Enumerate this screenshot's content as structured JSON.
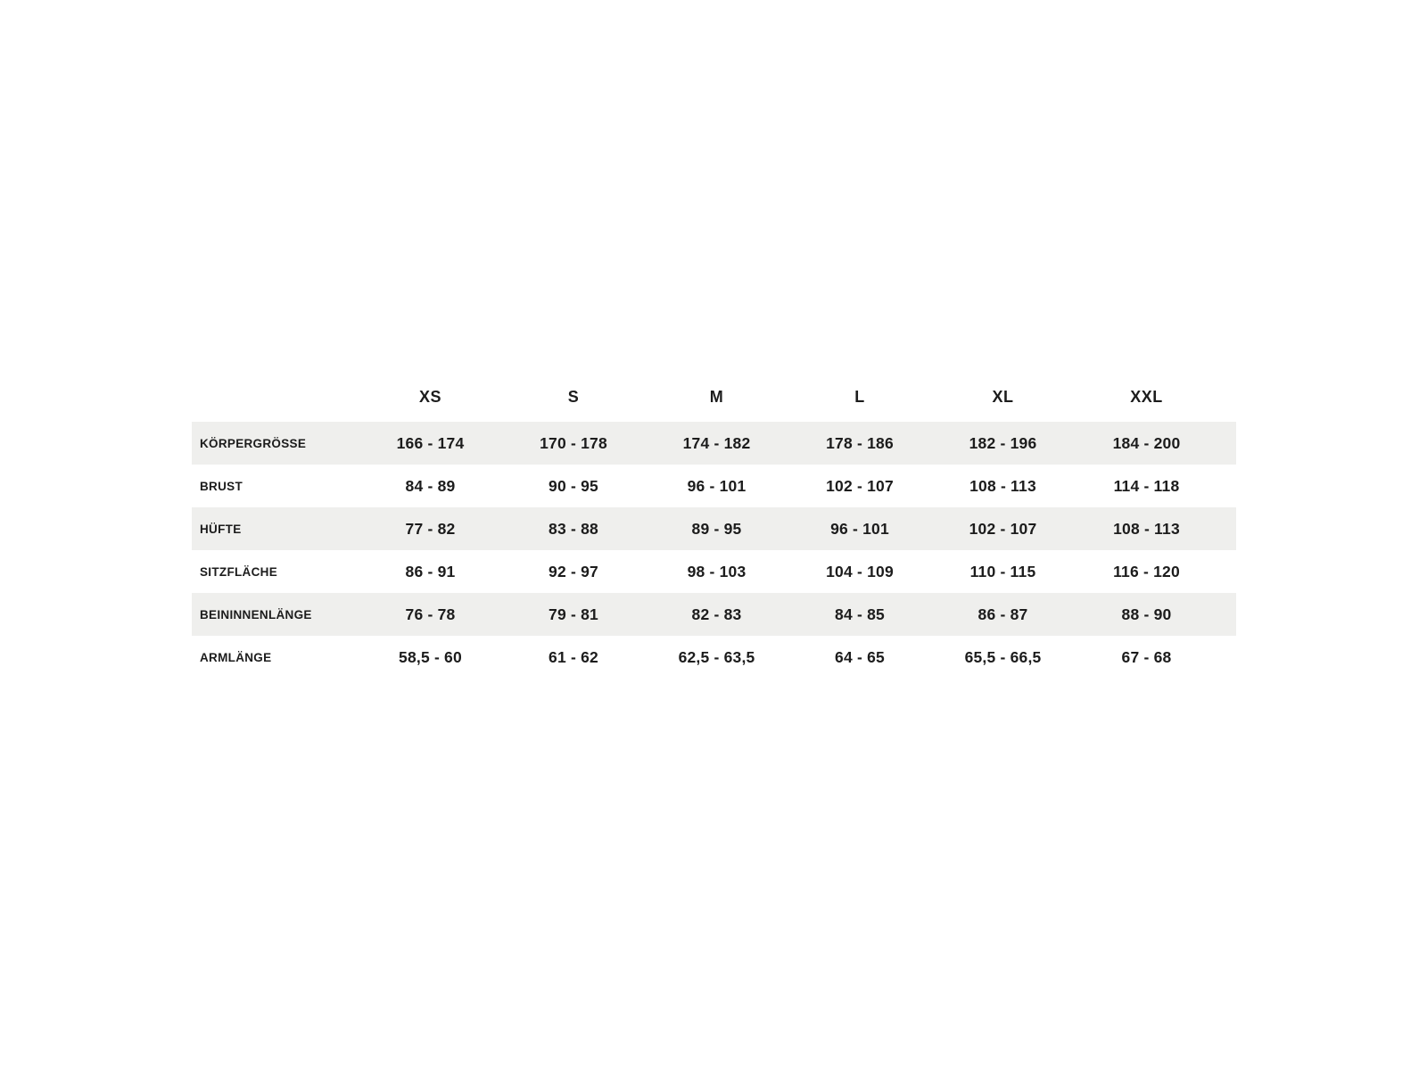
{
  "colors": {
    "background": "#ffffff",
    "row_stripe": "#efefed",
    "text": "#1c1c1c"
  },
  "chart_data": {
    "type": "table",
    "title": "",
    "columns": [
      "XS",
      "S",
      "M",
      "L",
      "XL",
      "XXL"
    ],
    "rows": [
      {
        "label": "KÖRPERGRÖSSE",
        "values": [
          "166 - 174",
          "170 - 178",
          "174 - 182",
          "178 - 186",
          "182 - 196",
          "184 - 200"
        ]
      },
      {
        "label": "BRUST",
        "values": [
          "84 - 89",
          "90 - 95",
          "96 - 101",
          "102 - 107",
          "108 - 113",
          "114 - 118"
        ]
      },
      {
        "label": "HÜFTE",
        "values": [
          "77 - 82",
          "83 - 88",
          "89 - 95",
          "96 - 101",
          "102 - 107",
          "108 - 113"
        ]
      },
      {
        "label": "SITZFLÄCHE",
        "values": [
          "86 - 91",
          "92 - 97",
          "98 - 103",
          "104 - 109",
          "110 - 115",
          "116 - 120"
        ]
      },
      {
        "label": "BEININNENLÄNGE",
        "values": [
          "76 - 78",
          "79 - 81",
          "82 - 83",
          "84 - 85",
          "86 - 87",
          "88 - 90"
        ]
      },
      {
        "label": "ARMLÄNGE",
        "values": [
          "58,5 - 60",
          "61 - 62",
          "62,5 - 63,5",
          "64 - 65",
          "65,5 - 66,5",
          "67 - 68"
        ]
      }
    ],
    "layout": {
      "striped_rows": "odd",
      "grid": false,
      "header_position": "top"
    }
  }
}
